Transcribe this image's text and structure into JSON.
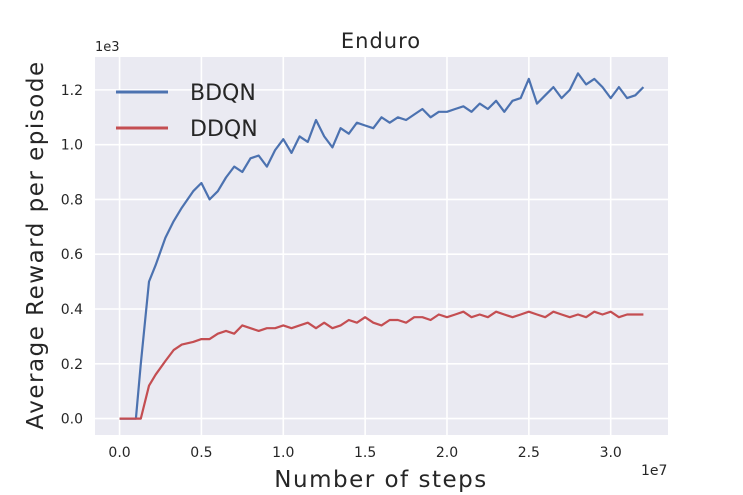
{
  "chart_data": {
    "type": "line",
    "title": "Enduro",
    "xlabel": "Number of steps",
    "ylabel": "Average Reward per episode",
    "x_multiplier_label": "1e7",
    "y_multiplier_label": "1e3",
    "xlim": [
      -0.15,
      3.35
    ],
    "ylim": [
      -0.06,
      1.32
    ],
    "x_ticks": [
      0.0,
      0.5,
      1.0,
      1.5,
      2.0,
      2.5,
      3.0
    ],
    "x_tick_labels": [
      "0.0",
      "0.5",
      "1.0",
      "1.5",
      "2.0",
      "2.5",
      "3.0"
    ],
    "y_ticks": [
      0.0,
      0.2,
      0.4,
      0.6,
      0.8,
      1.0,
      1.2
    ],
    "y_tick_labels": [
      "0.0",
      "0.2",
      "0.4",
      "0.6",
      "0.8",
      "1.0",
      "1.2"
    ],
    "grid": true,
    "legend_position": "top-left",
    "background_color": "#eaeaf2",
    "series": [
      {
        "name": "BDQN",
        "color": "#4c72b0",
        "x": [
          0.0,
          0.1,
          0.13,
          0.18,
          0.22,
          0.28,
          0.33,
          0.38,
          0.45,
          0.5,
          0.55,
          0.6,
          0.65,
          0.7,
          0.75,
          0.8,
          0.85,
          0.9,
          0.95,
          1.0,
          1.05,
          1.1,
          1.15,
          1.2,
          1.25,
          1.3,
          1.35,
          1.4,
          1.45,
          1.5,
          1.55,
          1.6,
          1.65,
          1.7,
          1.75,
          1.8,
          1.85,
          1.9,
          1.95,
          2.0,
          2.05,
          2.1,
          2.15,
          2.2,
          2.25,
          2.3,
          2.35,
          2.4,
          2.45,
          2.5,
          2.55,
          2.6,
          2.65,
          2.7,
          2.75,
          2.8,
          2.85,
          2.9,
          2.95,
          3.0,
          3.05,
          3.1,
          3.15,
          3.2
        ],
        "y": [
          0.0,
          0.0,
          0.2,
          0.5,
          0.56,
          0.66,
          0.72,
          0.77,
          0.83,
          0.86,
          0.8,
          0.83,
          0.88,
          0.92,
          0.9,
          0.95,
          0.96,
          0.92,
          0.98,
          1.02,
          0.97,
          1.03,
          1.01,
          1.09,
          1.03,
          0.99,
          1.06,
          1.04,
          1.08,
          1.07,
          1.06,
          1.1,
          1.08,
          1.1,
          1.09,
          1.11,
          1.13,
          1.1,
          1.12,
          1.12,
          1.13,
          1.14,
          1.12,
          1.15,
          1.13,
          1.16,
          1.12,
          1.16,
          1.17,
          1.24,
          1.15,
          1.18,
          1.21,
          1.17,
          1.2,
          1.26,
          1.22,
          1.24,
          1.21,
          1.17,
          1.21,
          1.17,
          1.18,
          1.21
        ]
      },
      {
        "name": "DDQN",
        "color": "#c44e52",
        "x": [
          0.0,
          0.1,
          0.13,
          0.18,
          0.22,
          0.28,
          0.33,
          0.38,
          0.45,
          0.5,
          0.55,
          0.6,
          0.65,
          0.7,
          0.75,
          0.8,
          0.85,
          0.9,
          0.95,
          1.0,
          1.05,
          1.1,
          1.15,
          1.2,
          1.25,
          1.3,
          1.35,
          1.4,
          1.45,
          1.5,
          1.55,
          1.6,
          1.65,
          1.7,
          1.75,
          1.8,
          1.85,
          1.9,
          1.95,
          2.0,
          2.05,
          2.1,
          2.15,
          2.2,
          2.25,
          2.3,
          2.35,
          2.4,
          2.45,
          2.5,
          2.55,
          2.6,
          2.65,
          2.7,
          2.75,
          2.8,
          2.85,
          2.9,
          2.95,
          3.0,
          3.05,
          3.1,
          3.15,
          3.2
        ],
        "y": [
          0.0,
          0.0,
          0.0,
          0.12,
          0.16,
          0.21,
          0.25,
          0.27,
          0.28,
          0.29,
          0.29,
          0.31,
          0.32,
          0.31,
          0.34,
          0.33,
          0.32,
          0.33,
          0.33,
          0.34,
          0.33,
          0.34,
          0.35,
          0.33,
          0.35,
          0.33,
          0.34,
          0.36,
          0.35,
          0.37,
          0.35,
          0.34,
          0.36,
          0.36,
          0.35,
          0.37,
          0.37,
          0.36,
          0.38,
          0.37,
          0.38,
          0.39,
          0.37,
          0.38,
          0.37,
          0.39,
          0.38,
          0.37,
          0.38,
          0.39,
          0.38,
          0.37,
          0.39,
          0.38,
          0.37,
          0.38,
          0.37,
          0.39,
          0.38,
          0.39,
          0.37,
          0.38,
          0.38,
          0.38
        ]
      }
    ]
  }
}
